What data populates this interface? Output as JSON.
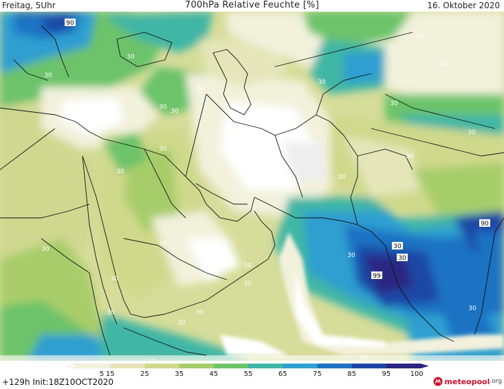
{
  "header": {
    "left": "Freitag, 5Uhr",
    "title": "700hPa Relative Feuchte [%]",
    "right": "16. Oktober 2020"
  },
  "footer": {
    "left": "+129h  Init:18Z10OCT2020"
  },
  "brand": {
    "name": "meteopool",
    "tld": ".org"
  },
  "legend": {
    "ticks": [
      "5",
      "15",
      "25",
      "35",
      "45",
      "55",
      "65",
      "75",
      "85",
      "95",
      "100"
    ],
    "colors": [
      "#ffffff",
      "#f2f1dc",
      "#e4e6b9",
      "#cfd98c",
      "#a7cd6a",
      "#6cc36a",
      "#3fb6a5",
      "#2f9fd0",
      "#1f72c3",
      "#1d46a4",
      "#2a2681"
    ]
  },
  "map_labels": [
    {
      "text": "90"
    },
    {
      "text": "30"
    },
    {
      "text": "30"
    },
    {
      "text": "30"
    },
    {
      "text": "30"
    },
    {
      "text": "30"
    },
    {
      "text": "30"
    },
    {
      "text": "30"
    },
    {
      "text": "30"
    },
    {
      "text": "30"
    },
    {
      "text": "30"
    },
    {
      "text": "30"
    },
    {
      "text": "30"
    },
    {
      "text": "30"
    },
    {
      "text": "30"
    },
    {
      "text": "30"
    },
    {
      "text": "30"
    },
    {
      "text": "30"
    },
    {
      "text": "30"
    },
    {
      "text": "30"
    },
    {
      "text": "30"
    },
    {
      "text": "30"
    },
    {
      "text": "30"
    },
    {
      "text": "30"
    },
    {
      "text": "30"
    },
    {
      "text": "30"
    },
    {
      "text": "90"
    },
    {
      "text": "30"
    },
    {
      "text": "30"
    },
    {
      "text": "99"
    },
    {
      "text": "30"
    },
    {
      "text": "30"
    },
    {
      "text": "30"
    },
    {
      "text": "30"
    }
  ]
}
